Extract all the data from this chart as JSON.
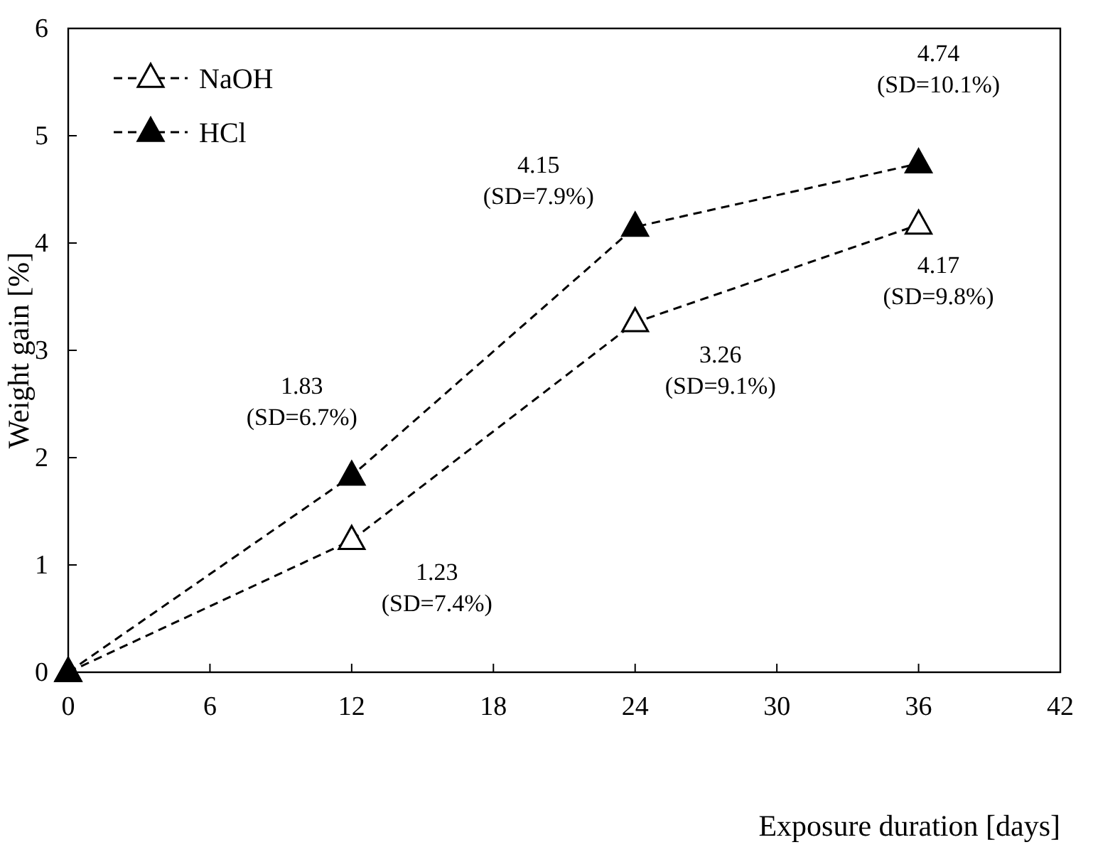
{
  "chart_data": {
    "type": "line",
    "xlabel": "Exposure duration [days]",
    "ylabel": "Weight gain [%]",
    "x": [
      0,
      12,
      24,
      36
    ],
    "xlim": [
      0,
      42
    ],
    "xticks": [
      0,
      6,
      12,
      18,
      24,
      30,
      36,
      42
    ],
    "ylim": [
      0,
      6
    ],
    "yticks": [
      0,
      1,
      2,
      3,
      4,
      5,
      6
    ],
    "grid": false,
    "legend": "top left",
    "marker": "triangle",
    "line_style": "dashed",
    "series": [
      {
        "name": "NaOH",
        "color": "#000000",
        "values": [
          0,
          1.23,
          3.26,
          4.17
        ],
        "value_labels": [
          null,
          "1.23\n(SD=7.4%)",
          "3.26\n(SD=9.1%)",
          "4.17\n(SD=9.8%)"
        ]
      },
      {
        "name": "HCl",
        "color": "#000000",
        "values": [
          0,
          1.83,
          4.15,
          4.74
        ],
        "value_labels": [
          null,
          "1.83\n(SD=6.7%)",
          "4.15\n(SD=7.9%)",
          "4.74\n(SD=10.1%)"
        ]
      }
    ]
  }
}
